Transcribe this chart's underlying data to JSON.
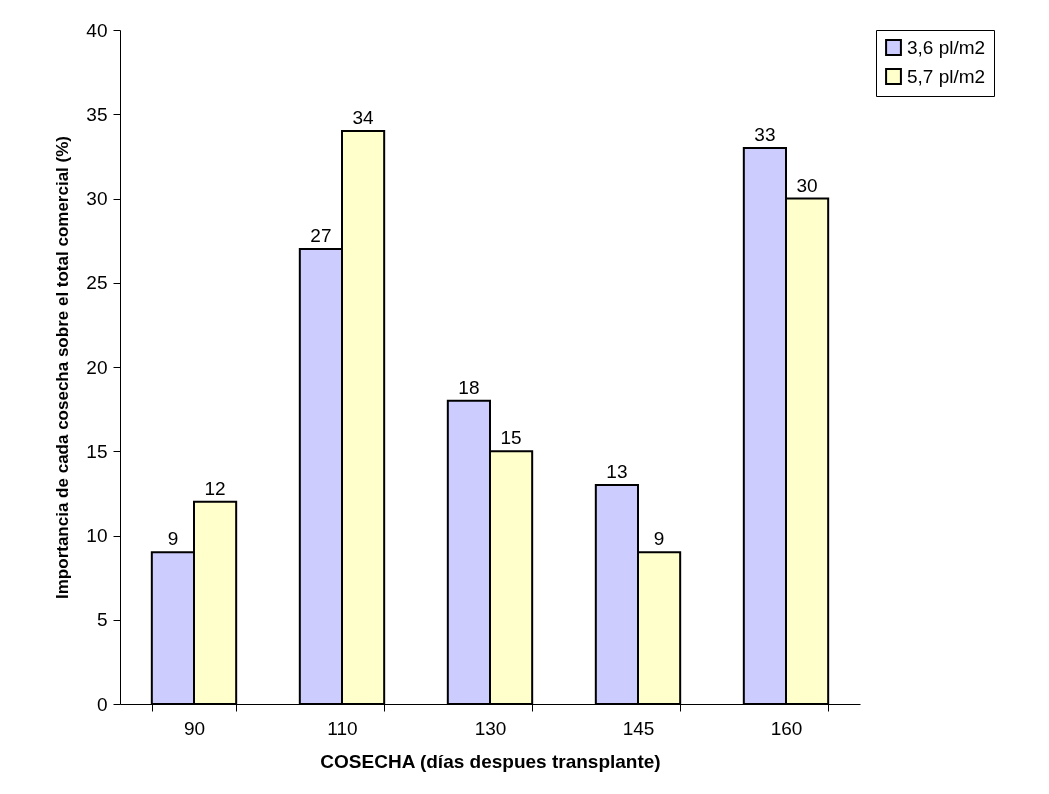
{
  "chart_data": {
    "type": "bar",
    "xlabel": "COSECHA (días despues transplante)",
    "ylabel": "Importancia de cada cosecha sobre el total comercial (%)",
    "categories": [
      "90",
      "110",
      "130",
      "145",
      "160"
    ],
    "series": [
      {
        "name": "3,6 pl/m2",
        "color": "#ccccff",
        "values": [
          9,
          27,
          18,
          13,
          33
        ]
      },
      {
        "name": "5,7 pl/m2",
        "color": "#ffffcc",
        "values": [
          12,
          34,
          15,
          9,
          30
        ]
      }
    ],
    "ylim": [
      0,
      40
    ],
    "yticks": [
      0,
      5,
      10,
      15,
      20,
      25,
      30,
      35,
      40
    ],
    "legend": "right",
    "data_labels": true
  }
}
